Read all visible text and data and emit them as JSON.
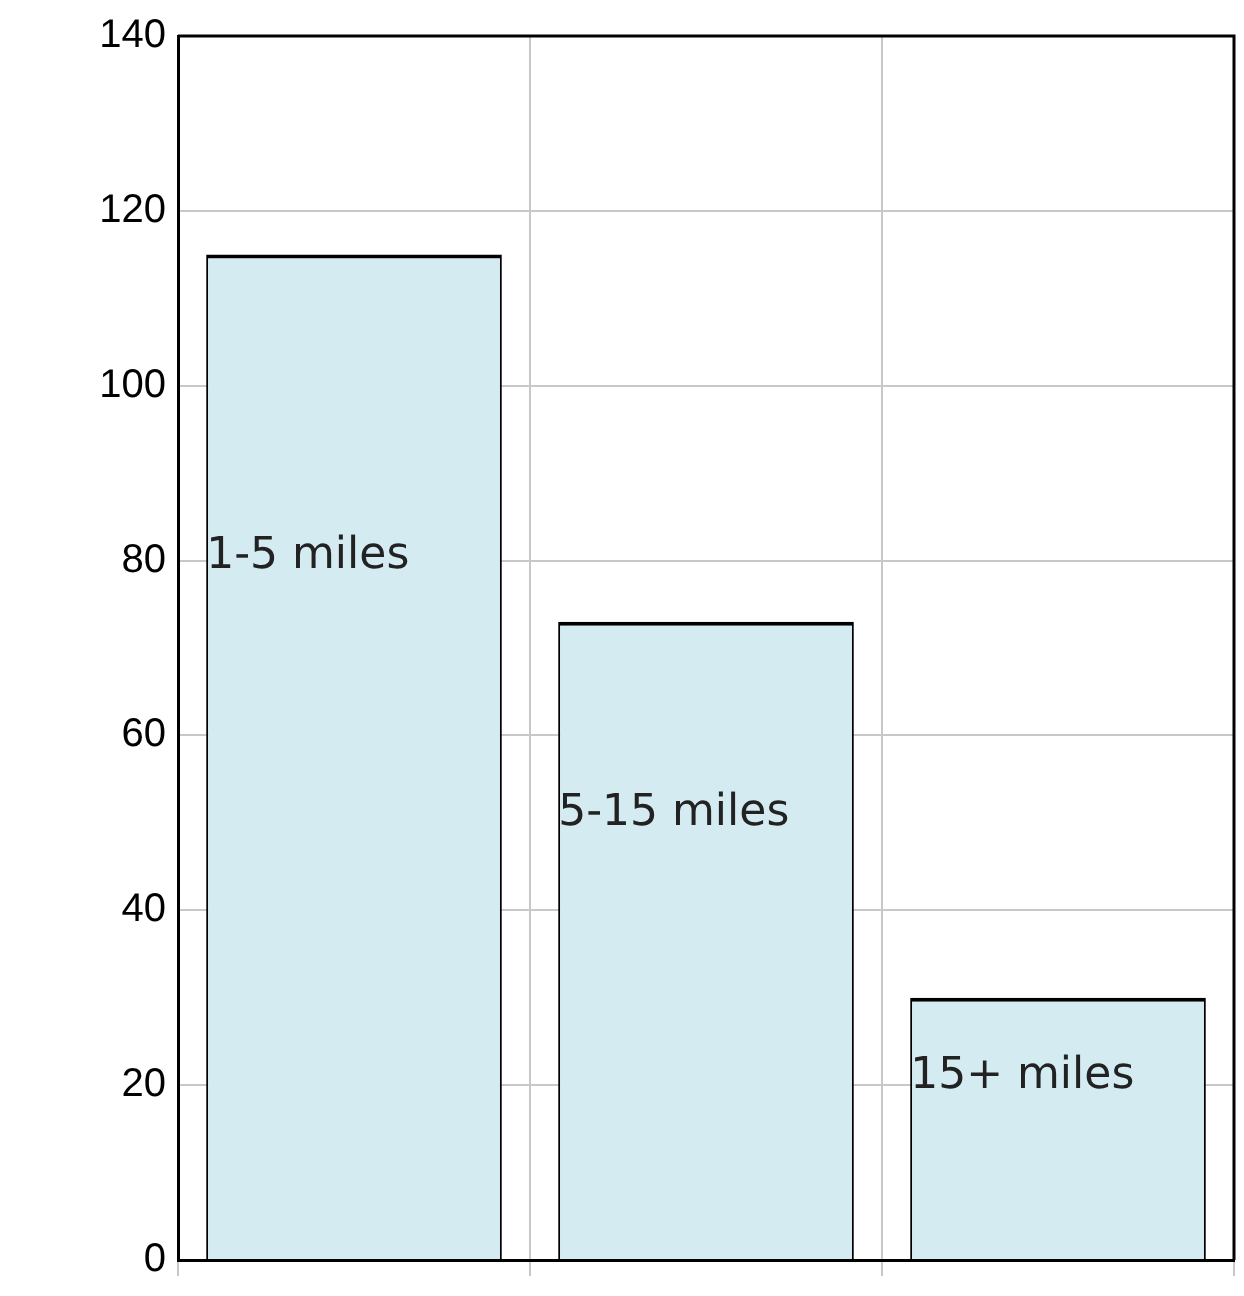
{
  "chart_data": {
    "type": "bar",
    "categories": [
      "1-5 miles",
      "5-15 miles",
      "15+ miles"
    ],
    "values": [
      115,
      73,
      30
    ],
    "color": "#d4ebf2",
    "ylim": [
      0,
      140
    ],
    "yticks": [
      0,
      20,
      40,
      60,
      80,
      100,
      120,
      140
    ],
    "grid": true,
    "tick_labels": "y"
  }
}
